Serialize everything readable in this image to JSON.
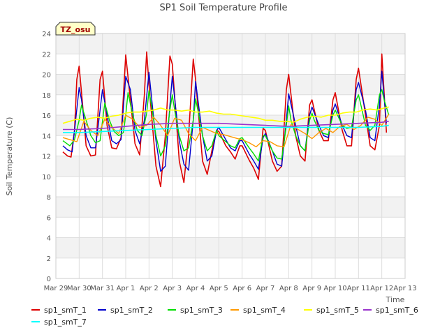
{
  "chart_data": {
    "type": "line",
    "title": "SP1 Soil Temperature Profile",
    "xlabel": "Time",
    "ylabel": "Soil Temperature (C)",
    "ylim": [
      0,
      24
    ],
    "xlim": [
      0,
      15
    ],
    "yticks": [
      0,
      2,
      4,
      6,
      8,
      10,
      12,
      14,
      16,
      18,
      20,
      22,
      24
    ],
    "xtick_labels": [
      "Mar 29",
      "Mar 30",
      "Mar 31",
      "Apr 1",
      "Apr 2",
      "Apr 3",
      "Apr 4",
      "Apr 5",
      "Apr 6",
      "Apr 7",
      "Apr 8",
      "Apr 9",
      "Apr 10",
      "Apr 11",
      "Apr 12",
      "Apr 13"
    ],
    "grid": true,
    "legend_position": "bottom",
    "annotation": "TZ_osu",
    "series": [
      {
        "name": "sp1_smT_1",
        "color": "#dd0000",
        "width": 1.6,
        "x": [
          0.3,
          0.5,
          0.65,
          0.8,
          0.9,
          1.0,
          1.15,
          1.3,
          1.5,
          1.7,
          1.9,
          2.0,
          2.2,
          2.4,
          2.6,
          2.8,
          3.0,
          3.2,
          3.4,
          3.6,
          3.8,
          3.9,
          4.0,
          4.3,
          4.5,
          4.7,
          4.9,
          5.0,
          5.3,
          5.5,
          5.7,
          5.9,
          6.0,
          6.3,
          6.5,
          6.7,
          6.9,
          7.0,
          7.3,
          7.5,
          7.7,
          7.9,
          8.0,
          8.3,
          8.5,
          8.7,
          8.9,
          9.0,
          9.3,
          9.5,
          9.7,
          9.9,
          10.0,
          10.3,
          10.5,
          10.7,
          10.9,
          11.0,
          11.3,
          11.5,
          11.7,
          11.9,
          12.0,
          12.3,
          12.5,
          12.7,
          12.9,
          13.0,
          13.3,
          13.5,
          13.7,
          13.9,
          14.0,
          14.2
        ],
        "y": [
          12.4,
          12.0,
          11.9,
          14.5,
          19.5,
          20.8,
          17.0,
          13.0,
          12.0,
          12.1,
          19.5,
          20.3,
          15.0,
          12.8,
          12.7,
          13.8,
          21.9,
          17.5,
          13.2,
          12.1,
          18.0,
          22.2,
          19.0,
          11.0,
          9.0,
          14.0,
          21.8,
          21.0,
          11.5,
          9.4,
          14.0,
          21.5,
          19.5,
          11.5,
          10.2,
          12.5,
          14.5,
          14.4,
          13.0,
          12.4,
          11.7,
          13.0,
          13.0,
          11.6,
          10.8,
          9.7,
          14.7,
          14.5,
          11.5,
          10.5,
          11.0,
          18.5,
          20.0,
          14.0,
          12.0,
          11.5,
          17.0,
          17.5,
          14.5,
          13.5,
          13.5,
          17.5,
          18.2,
          14.5,
          13.0,
          13.0,
          19.5,
          20.6,
          16.0,
          13.0,
          12.6,
          15.0,
          22.0,
          14.3
        ]
      },
      {
        "name": "sp1_smT_2",
        "color": "#0000cc",
        "width": 1.4,
        "x": [
          0.3,
          0.5,
          0.7,
          0.85,
          1.0,
          1.1,
          1.3,
          1.5,
          1.7,
          1.9,
          2.0,
          2.2,
          2.4,
          2.6,
          2.8,
          3.0,
          3.2,
          3.4,
          3.6,
          3.8,
          4.0,
          4.3,
          4.5,
          4.7,
          4.9,
          5.0,
          5.3,
          5.5,
          5.7,
          5.9,
          6.0,
          6.3,
          6.5,
          6.7,
          6.9,
          7.0,
          7.3,
          7.5,
          7.7,
          7.9,
          8.0,
          8.3,
          8.5,
          8.7,
          8.9,
          9.0,
          9.3,
          9.5,
          9.7,
          9.9,
          10.0,
          10.3,
          10.5,
          10.7,
          10.9,
          11.0,
          11.3,
          11.5,
          11.7,
          11.9,
          12.0,
          12.3,
          12.5,
          12.7,
          12.9,
          13.0,
          13.3,
          13.5,
          13.7,
          13.9,
          14.0,
          14.2
        ],
        "y": [
          13.0,
          12.6,
          12.4,
          15.5,
          18.7,
          17.5,
          14.0,
          12.8,
          12.8,
          16.5,
          18.5,
          16.0,
          13.5,
          13.2,
          13.6,
          19.8,
          18.5,
          14.5,
          13.2,
          15.5,
          20.2,
          13.5,
          10.5,
          11.0,
          17.0,
          19.8,
          13.5,
          11.2,
          10.6,
          15.5,
          19.3,
          14.0,
          11.5,
          12.0,
          14.5,
          14.8,
          13.6,
          12.8,
          12.5,
          13.5,
          13.5,
          12.2,
          11.5,
          10.7,
          13.8,
          14.2,
          12.5,
          11.2,
          11.0,
          15.5,
          18.1,
          15.0,
          13.0,
          12.5,
          16.0,
          16.8,
          15.0,
          14.0,
          13.8,
          16.5,
          17.1,
          15.0,
          14.0,
          13.8,
          18.5,
          19.2,
          16.5,
          13.8,
          13.5,
          17.0,
          20.3,
          15.2
        ]
      },
      {
        "name": "sp1_smT_3",
        "color": "#00dd00",
        "width": 1.4,
        "x": [
          0.3,
          0.6,
          0.8,
          1.0,
          1.1,
          1.3,
          1.5,
          1.7,
          1.9,
          2.1,
          2.3,
          2.5,
          2.7,
          2.9,
          3.0,
          3.1,
          3.3,
          3.5,
          3.7,
          3.9,
          4.0,
          4.1,
          4.3,
          4.5,
          4.7,
          4.9,
          5.0,
          5.1,
          5.3,
          5.5,
          5.7,
          5.9,
          6.0,
          6.1,
          6.3,
          6.5,
          6.7,
          6.9,
          7.0,
          7.3,
          7.5,
          7.7,
          7.9,
          8.0,
          8.3,
          8.5,
          8.7,
          8.9,
          9.0,
          9.3,
          9.5,
          9.7,
          9.9,
          10.0,
          10.1,
          10.3,
          10.5,
          10.7,
          10.9,
          11.0,
          11.1,
          11.3,
          11.5,
          11.7,
          11.9,
          12.0,
          12.1,
          12.3,
          12.5,
          12.7,
          12.9,
          13.0,
          13.1,
          13.3,
          13.5,
          13.7,
          13.9,
          14.0,
          14.1,
          14.3
        ],
        "y": [
          13.5,
          13.0,
          13.6,
          15.5,
          17.0,
          15.5,
          14.0,
          13.3,
          13.5,
          17.2,
          15.5,
          14.4,
          14.0,
          14.3,
          16.0,
          18.2,
          16.0,
          14.5,
          14.0,
          16.2,
          18.4,
          17.0,
          14.0,
          12.0,
          13.0,
          16.5,
          18.0,
          16.5,
          14.0,
          12.5,
          12.8,
          15.5,
          17.6,
          16.5,
          14.0,
          12.5,
          13.0,
          14.5,
          14.0,
          13.4,
          13.0,
          12.8,
          13.7,
          13.8,
          12.8,
          12.2,
          11.5,
          14.0,
          14.0,
          12.5,
          11.8,
          11.7,
          15.0,
          16.9,
          15.5,
          14.0,
          13.0,
          12.5,
          15.5,
          16.2,
          15.5,
          14.5,
          14.2,
          14.1,
          16.0,
          16.5,
          16.0,
          15.0,
          14.7,
          14.8,
          17.5,
          18.0,
          17.0,
          15.0,
          14.5,
          15.0,
          18.0,
          18.5,
          17.5,
          16.0
        ]
      },
      {
        "name": "sp1_smT_4",
        "color": "#ff9900",
        "width": 1.4,
        "x": [
          0.3,
          0.6,
          0.9,
          1.2,
          1.5,
          1.8,
          2.1,
          2.4,
          2.7,
          3.0,
          3.3,
          3.6,
          3.9,
          4.2,
          4.5,
          4.8,
          5.1,
          5.4,
          5.7,
          6.0,
          6.3,
          6.6,
          6.9,
          7.2,
          7.5,
          7.8,
          8.0,
          8.3,
          8.6,
          8.9,
          9.2,
          9.5,
          9.8,
          10.1,
          10.4,
          10.7,
          11.0,
          11.3,
          11.6,
          11.9,
          12.2,
          12.5,
          12.8,
          13.1,
          13.4,
          13.7,
          14.0,
          14.3
        ],
        "y": [
          13.8,
          13.6,
          13.4,
          15.4,
          14.5,
          14.0,
          15.6,
          14.8,
          14.2,
          16.0,
          15.6,
          14.8,
          15.0,
          15.8,
          15.0,
          14.0,
          15.7,
          15.5,
          14.2,
          13.5,
          14.8,
          14.5,
          14.2,
          14.1,
          13.9,
          13.7,
          13.6,
          13.3,
          12.9,
          13.5,
          13.4,
          13.0,
          12.9,
          15.1,
          14.6,
          14.2,
          13.7,
          14.3,
          14.7,
          14.3,
          14.9,
          15.1,
          14.6,
          15.0,
          15.8,
          15.6,
          15.0,
          16.1
        ]
      },
      {
        "name": "sp1_smT_5",
        "color": "#ffff00",
        "width": 1.6,
        "x": [
          0.3,
          0.6,
          0.9,
          1.2,
          1.5,
          1.8,
          2.1,
          2.4,
          2.7,
          3.0,
          3.3,
          3.6,
          3.9,
          4.2,
          4.5,
          4.8,
          5.1,
          5.4,
          5.7,
          6.0,
          6.3,
          6.6,
          6.9,
          7.2,
          7.5,
          7.8,
          8.1,
          8.4,
          8.7,
          9.0,
          9.3,
          9.6,
          9.9,
          10.2,
          10.5,
          10.8,
          11.1,
          11.4,
          11.7,
          12.0,
          12.3,
          12.6,
          12.9,
          13.2,
          13.5,
          13.8,
          14.1,
          14.3
        ],
        "y": [
          15.2,
          15.4,
          15.6,
          15.5,
          15.7,
          15.8,
          15.7,
          15.9,
          16.0,
          16.2,
          16.3,
          16.3,
          16.4,
          16.5,
          16.7,
          16.5,
          16.5,
          16.4,
          16.5,
          16.3,
          16.3,
          16.4,
          16.2,
          16.1,
          16.1,
          16.0,
          15.9,
          15.8,
          15.7,
          15.5,
          15.5,
          15.4,
          15.4,
          15.3,
          15.6,
          15.8,
          15.9,
          15.8,
          16.0,
          16.0,
          16.2,
          16.3,
          16.3,
          16.5,
          16.6,
          16.5,
          16.7,
          16.8
        ]
      },
      {
        "name": "sp1_smT_6",
        "color": "#9933cc",
        "width": 1.6,
        "x": [
          0.3,
          1.0,
          2.0,
          3.0,
          4.0,
          5.0,
          6.0,
          7.0,
          8.0,
          9.0,
          10.0,
          11.0,
          12.0,
          13.0,
          14.0,
          14.3
        ],
        "y": [
          14.6,
          14.6,
          14.7,
          14.9,
          15.1,
          15.2,
          15.2,
          15.2,
          15.1,
          15.0,
          14.9,
          15.0,
          15.1,
          15.2,
          15.3,
          15.4
        ]
      },
      {
        "name": "sp1_smT_7",
        "color": "#00ffff",
        "width": 1.6,
        "x": [
          0.3,
          1.0,
          2.0,
          3.0,
          4.0,
          5.0,
          6.0,
          7.0,
          8.0,
          9.0,
          10.0,
          11.0,
          12.0,
          13.0,
          14.0,
          14.3
        ],
        "y": [
          14.3,
          14.3,
          14.4,
          14.5,
          14.6,
          14.7,
          14.8,
          14.8,
          14.8,
          14.8,
          14.8,
          14.8,
          14.8,
          14.8,
          14.9,
          15.0
        ]
      }
    ]
  }
}
